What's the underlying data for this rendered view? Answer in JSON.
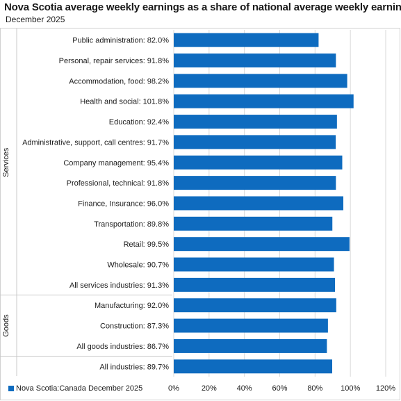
{
  "chart_data": {
    "type": "bar",
    "orientation": "horizontal",
    "title": "Nova Scotia average weekly earnings as a share of national average weekly earnings",
    "subtitle": "December 2025",
    "groups": [
      {
        "name": "Services",
        "categories": [
          "Public administration: 82.0%",
          "Personal, repair services: 91.8%",
          "Accommodation, food: 98.2%",
          "Health and social: 101.8%",
          "Education: 92.4%",
          "Administrative, support, call centres: 91.7%",
          "Company management: 95.4%",
          "Professional, technical: 91.8%",
          "Finance, Insurance: 96.0%",
          "Transportation: 89.8%",
          "Retail: 99.5%",
          "Wholesale: 90.7%",
          "All services industries: 91.3%"
        ]
      },
      {
        "name": "Goods",
        "categories": [
          "Manufacturing: 92.0%",
          "Construction: 87.3%",
          "All goods industries: 86.7%"
        ]
      },
      {
        "name": "",
        "categories": [
          "All industries: 89.7%"
        ]
      }
    ],
    "categories": [
      "Public administration: 82.0%",
      "Personal, repair services: 91.8%",
      "Accommodation, food: 98.2%",
      "Health and social: 101.8%",
      "Education: 92.4%",
      "Administrative, support, call centres: 91.7%",
      "Company management: 95.4%",
      "Professional, technical: 91.8%",
      "Finance, Insurance: 96.0%",
      "Transportation: 89.8%",
      "Retail: 99.5%",
      "Wholesale: 90.7%",
      "All services industries: 91.3%",
      "Manufacturing: 92.0%",
      "Construction: 87.3%",
      "All goods industries: 86.7%",
      "All industries: 89.7%"
    ],
    "series": [
      {
        "name": "Nova Scotia:Canada December 2025",
        "values": [
          82.0,
          91.8,
          98.2,
          101.8,
          92.4,
          91.7,
          95.4,
          91.8,
          96.0,
          89.8,
          99.5,
          90.7,
          91.3,
          92.0,
          87.3,
          86.7,
          89.7
        ]
      }
    ],
    "xlim": [
      0,
      120
    ],
    "xticks": [
      "0%",
      "20%",
      "40%",
      "60%",
      "80%",
      "100%",
      "120%"
    ],
    "grid": "vertical",
    "legend_position": "bottom-left",
    "colors": {
      "bar": "#0e6bbf",
      "grid": "#d9d9d9",
      "divider": "#c8c8c8"
    }
  }
}
